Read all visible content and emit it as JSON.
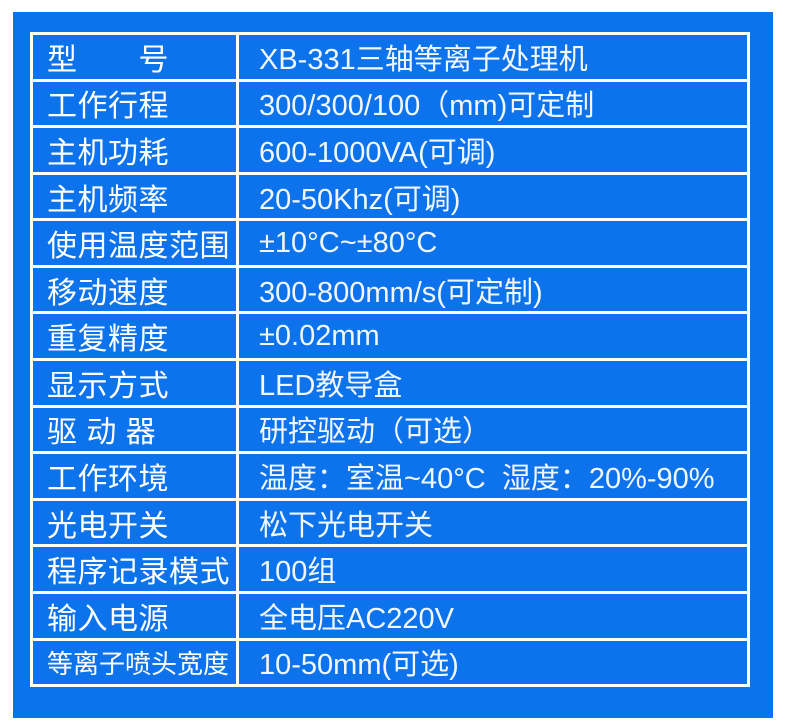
{
  "colors": {
    "panel_blue": "#0d73ec",
    "table_border": "#ffffff",
    "label_text": "#ffffff",
    "value_text": "#f2f7fd",
    "page_background": "#ffffff"
  },
  "spec_table": {
    "rows": [
      {
        "label": "型　　号",
        "value": "XB-331三轴等离子处理机"
      },
      {
        "label": "工作行程",
        "value": "300/300/100（mm)可定制"
      },
      {
        "label": "主机功耗",
        "value": "600-1000VA(可调)"
      },
      {
        "label": "主机频率",
        "value": "20-50Khz(可调)"
      },
      {
        "label": "使用温度范围",
        "value": "±10°C~±80°C"
      },
      {
        "label": "移动速度",
        "value": "300-800mm/s(可定制)"
      },
      {
        "label": "重复精度",
        "value": "±0.02mm"
      },
      {
        "label": "显示方式",
        "value": "LED教导盒"
      },
      {
        "label": "驱 动 器",
        "value": "研控驱动（可选）"
      },
      {
        "label": "工作环境",
        "value": "温度：室温~40°C  湿度：20%-90%"
      },
      {
        "label": "光电开关",
        "value": "松下光电开关"
      },
      {
        "label": "程序记录模式",
        "value": "100组"
      },
      {
        "label": "输入电源",
        "value": "全电压AC220V"
      },
      {
        "label": "等离子喷头宽度",
        "value": "10-50mm(可选)"
      }
    ]
  }
}
